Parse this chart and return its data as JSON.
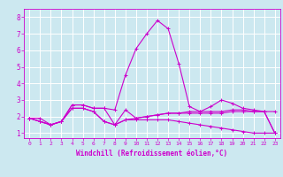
{
  "xlabel": "Windchill (Refroidissement éolien,°C)",
  "bg_color": "#cce8f0",
  "line_color": "#cc00cc",
  "grid_color": "#ffffff",
  "xlim": [
    -0.5,
    23.5
  ],
  "ylim": [
    0.7,
    8.5
  ],
  "xticks": [
    0,
    1,
    2,
    3,
    4,
    5,
    6,
    7,
    8,
    9,
    10,
    11,
    12,
    13,
    14,
    15,
    16,
    17,
    18,
    19,
    20,
    21,
    22,
    23
  ],
  "yticks": [
    1,
    2,
    3,
    4,
    5,
    6,
    7,
    8
  ],
  "series": [
    [
      1.9,
      1.7,
      1.5,
      1.7,
      2.7,
      2.7,
      2.5,
      2.5,
      1.5,
      2.4,
      1.9,
      2.0,
      2.1,
      2.2,
      2.2,
      2.3,
      2.3,
      2.3,
      2.3,
      2.4,
      2.4,
      2.3,
      2.3,
      2.3
    ],
    [
      1.9,
      1.7,
      1.5,
      1.7,
      2.5,
      2.5,
      2.3,
      1.7,
      1.5,
      1.8,
      1.8,
      1.8,
      1.8,
      1.8,
      1.7,
      1.6,
      1.5,
      1.4,
      1.3,
      1.2,
      1.1,
      1.0,
      1.0,
      1.0
    ],
    [
      1.9,
      1.7,
      1.5,
      1.7,
      2.5,
      2.5,
      2.3,
      1.7,
      1.5,
      1.8,
      1.9,
      2.0,
      2.1,
      2.2,
      2.2,
      2.2,
      2.2,
      2.2,
      2.2,
      2.3,
      2.3,
      2.3,
      2.3,
      1.0
    ],
    [
      1.9,
      1.9,
      1.5,
      1.7,
      2.7,
      2.7,
      2.5,
      2.5,
      2.4,
      4.5,
      6.1,
      7.0,
      7.8,
      7.3,
      5.2,
      2.6,
      2.3,
      2.6,
      3.0,
      2.8,
      2.5,
      2.4,
      2.3,
      1.0
    ]
  ]
}
